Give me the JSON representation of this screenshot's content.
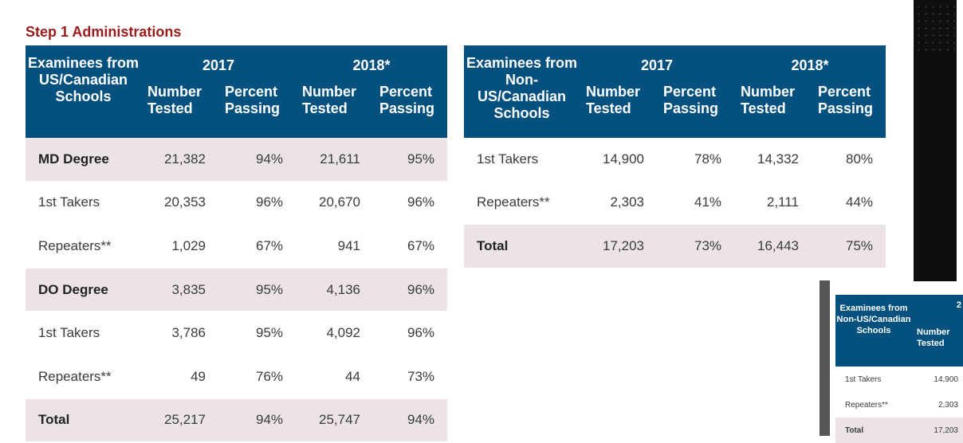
{
  "title": "Step 1 Administrations",
  "us_table": {
    "examinees_header": "Examinees from US/Canadian Schools",
    "year_2017": "2017",
    "year_2018": "2018*",
    "col_number": "Number Tested",
    "col_percent": "Percent Passing",
    "rows": [
      {
        "label": "MD Degree",
        "n2017": "21,382",
        "p2017": "94%",
        "n2018": "21,611",
        "p2018": "95%"
      },
      {
        "label": "1st Takers",
        "n2017": "20,353",
        "p2017": "96%",
        "n2018": "20,670",
        "p2018": "96%"
      },
      {
        "label": "Repeaters**",
        "n2017": "1,029",
        "p2017": "67%",
        "n2018": "941",
        "p2018": "67%"
      },
      {
        "label": "DO Degree",
        "n2017": "3,835",
        "p2017": "95%",
        "n2018": "4,136",
        "p2018": "96%"
      },
      {
        "label": "1st Takers",
        "n2017": "3,786",
        "p2017": "95%",
        "n2018": "4,092",
        "p2018": "96%"
      },
      {
        "label": "Repeaters**",
        "n2017": "49",
        "p2017": "76%",
        "n2018": "44",
        "p2018": "73%"
      },
      {
        "label": "Total",
        "n2017": "25,217",
        "p2017": "94%",
        "n2018": "25,747",
        "p2018": "94%"
      }
    ]
  },
  "non_us_table": {
    "examinees_header": "Examinees from Non-US/Canadian Schools",
    "year_2017": "2017",
    "year_2018": "2018*",
    "col_number": "Number Tested",
    "col_percent": "Percent Passing",
    "rows": [
      {
        "label": "1st Takers",
        "n2017": "14,900",
        "p2017": "78%",
        "n2018": "14,332",
        "p2018": "80%"
      },
      {
        "label": "Repeaters**",
        "n2017": "2,303",
        "p2017": "41%",
        "n2018": "2,111",
        "p2018": "44%"
      },
      {
        "label": "Total",
        "n2017": "17,203",
        "p2017": "73%",
        "n2018": "16,443",
        "p2018": "75%"
      }
    ]
  },
  "thumbnail": {
    "examinees_header": "Examinees from Non-US/Canadian Schools",
    "year": "2",
    "col_number": "Number Tested",
    "rows": [
      {
        "label": "1st Takers",
        "n2017": "14,900"
      },
      {
        "label": "Repeaters**",
        "n2017": "2,303"
      },
      {
        "label": "Total",
        "n2017": "17,203"
      }
    ]
  },
  "colors": {
    "header_bg": "#04507e",
    "title": "#9a1b1b",
    "shade": "#ece3e4"
  }
}
